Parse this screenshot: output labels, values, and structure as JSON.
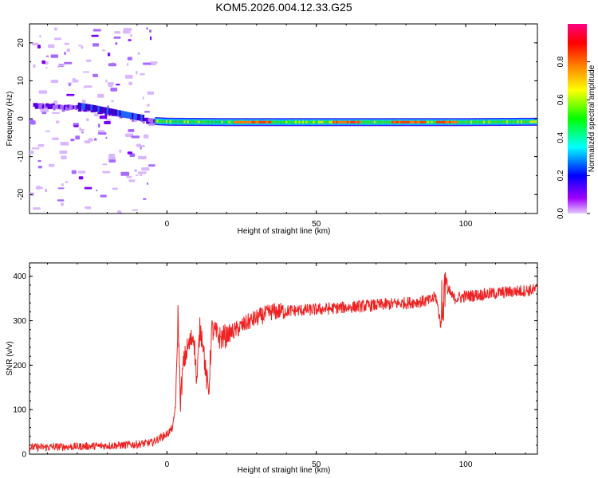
{
  "title": "KOM5.2026.004.12.33.G25",
  "chart_data": [
    {
      "type": "heatmap",
      "xlabel": "Height of straight line (km)",
      "ylabel": "Frequency (Hz)",
      "xlim": [
        -46,
        124
      ],
      "ylim": [
        -25,
        25
      ],
      "xticks": [
        0,
        50,
        100
      ],
      "yticks": [
        -20,
        -10,
        0,
        10,
        20
      ],
      "colorbar": {
        "label": "Normalized spectral amplitude",
        "range": [
          0,
          1
        ],
        "ticks": [
          "0.0",
          "0.2",
          "0.4",
          "0.6",
          "0.8"
        ],
        "colors": [
          "#e6ccff",
          "#7000ff",
          "#0000ff",
          "#00ffff",
          "#00ff00",
          "#ffff00",
          "#ff8000",
          "#ff0000",
          "#ff0080"
        ]
      },
      "trace": {
        "points": [
          {
            "x": -45,
            "f": 3.5
          },
          {
            "x": -40,
            "f": 3.3
          },
          {
            "x": -35,
            "f": 3.0
          },
          {
            "x": -30,
            "f": 3.0
          },
          {
            "x": -25,
            "f": 2.4
          },
          {
            "x": -20,
            "f": 1.6
          },
          {
            "x": -15,
            "f": 0.8
          },
          {
            "x": -10,
            "f": 0.0
          },
          {
            "x": -5,
            "f": -0.6
          },
          {
            "x": 0,
            "f": -0.8
          },
          {
            "x": 20,
            "f": -0.9
          },
          {
            "x": 60,
            "f": -0.9
          },
          {
            "x": 100,
            "f": -0.9
          },
          {
            "x": 124,
            "f": -0.8
          }
        ],
        "strong_segments": [
          [
            22,
            35
          ],
          [
            55,
            65
          ],
          [
            75,
            86
          ],
          [
            90,
            97
          ]
        ]
      },
      "noise_region_x": [
        -46,
        -4
      ],
      "noise_range_f": [
        -25,
        25
      ]
    },
    {
      "type": "line",
      "xlabel": "Height of straight line (km)",
      "ylabel": "SNR (v/v)",
      "xlim": [
        -46,
        124
      ],
      "ylim": [
        0,
        430
      ],
      "xticks": [
        0,
        50,
        100
      ],
      "yticks": [
        0,
        100,
        200,
        300,
        400
      ],
      "color": "#ee2222",
      "series": [
        {
          "x": [
            -46,
            -30,
            -15,
            -10,
            -5,
            0,
            2,
            3,
            3.7,
            4.5,
            5.5,
            6.5,
            8,
            9,
            10,
            11,
            12,
            13,
            14,
            15,
            18,
            22,
            28,
            35,
            40,
            50,
            60,
            70,
            80,
            88,
            90,
            92,
            93,
            94,
            96,
            100,
            110,
            124
          ],
          "y": [
            15,
            17,
            20,
            22,
            26,
            45,
            60,
            120,
            320,
            120,
            200,
            230,
            255,
            270,
            160,
            280,
            260,
            180,
            140,
            280,
            260,
            275,
            300,
            320,
            322,
            325,
            330,
            335,
            340,
            345,
            355,
            280,
            410,
            370,
            350,
            355,
            362,
            370
          ]
        }
      ]
    }
  ]
}
